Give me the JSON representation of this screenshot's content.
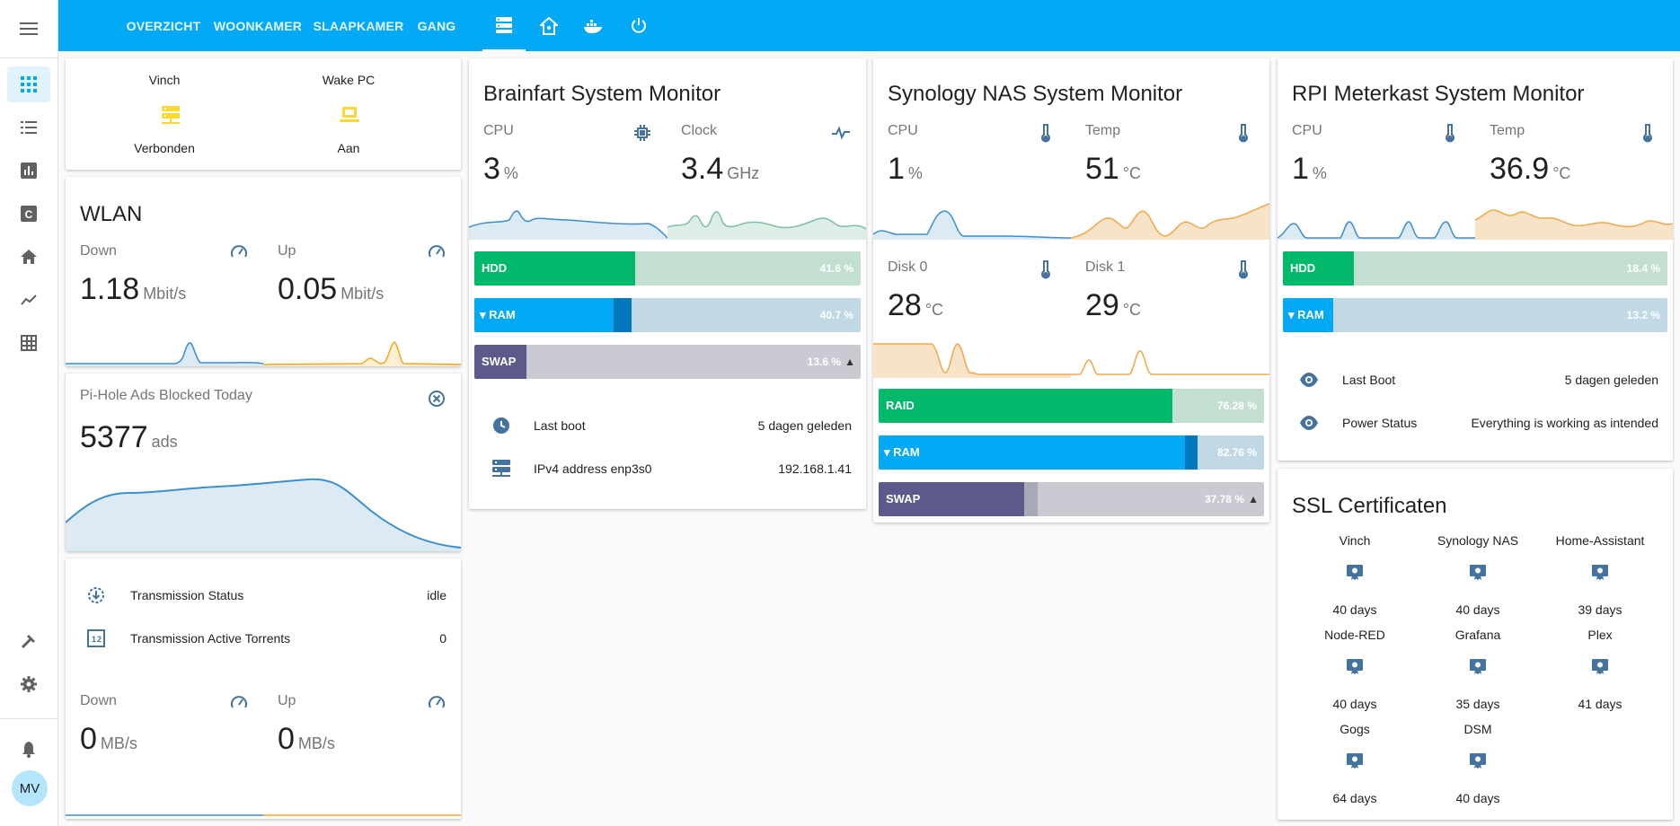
{
  "nav": {
    "tabs": [
      "OVERZICHT",
      "WOONKAMER",
      "SLAAPKAMER",
      "GANG"
    ],
    "user_initials": "MV"
  },
  "toggles": {
    "items": [
      {
        "name": "Vinch",
        "state": "Verbonden"
      },
      {
        "name": "Wake PC",
        "state": "Aan"
      }
    ]
  },
  "wlan": {
    "title": "WLAN",
    "down_label": "Down",
    "down_value": "1.18",
    "down_unit": "Mbit/s",
    "up_label": "Up",
    "up_value": "0.05",
    "up_unit": "Mbit/s"
  },
  "pihole": {
    "title": "Pi-Hole Ads Blocked Today",
    "value": "5377",
    "unit": "ads"
  },
  "transmission": {
    "status_label": "Transmission Status",
    "status_value": "idle",
    "torrents_label": "Transmission Active Torrents",
    "torrents_value": "0",
    "down_label": "Down",
    "down_value": "0",
    "down_unit": "MB/s",
    "up_label": "Up",
    "up_value": "0",
    "up_unit": "MB/s"
  },
  "brainfart": {
    "title": "Brainfart System Monitor",
    "cpu_label": "CPU",
    "cpu_value": "3",
    "cpu_unit": "%",
    "clock_label": "Clock",
    "clock_value": "3.4",
    "clock_unit": "GHz",
    "bars": [
      {
        "label": "HDD",
        "percent": "41.6 %",
        "fraction": 0.416
      },
      {
        "label": "RAM",
        "percent": "40.7 %",
        "fraction": 0.407
      },
      {
        "label": "SWAP",
        "percent": "13.6 %",
        "fraction": 0.136
      }
    ],
    "boot_label": "Last boot",
    "boot_value": "5 dagen geleden",
    "ip_label": "IPv4 address enp3s0",
    "ip_value": "192.168.1.41"
  },
  "synology": {
    "title": "Synology NAS System Monitor",
    "cpu_label": "CPU",
    "cpu_value": "1",
    "cpu_unit": "%",
    "temp_label": "Temp",
    "temp_value": "51",
    "temp_unit": "°C",
    "disk0_label": "Disk 0",
    "disk0_value": "28",
    "disk0_unit": "°C",
    "disk1_label": "Disk 1",
    "disk1_value": "29",
    "disk1_unit": "°C",
    "bars": [
      {
        "label": "RAID",
        "percent": "76.28 %",
        "fraction": 0.7628
      },
      {
        "label": "RAM",
        "percent": "82.76 %",
        "fraction": 0.8276
      },
      {
        "label": "SWAP",
        "percent": "37.78 %",
        "fraction": 0.3778
      }
    ]
  },
  "rpi": {
    "title": "RPI Meterkast System Monitor",
    "cpu_label": "CPU",
    "cpu_value": "1",
    "cpu_unit": "%",
    "temp_label": "Temp",
    "temp_value": "36.9",
    "temp_unit": "°C",
    "bars": [
      {
        "label": "HDD",
        "percent": "18.4 %",
        "fraction": 0.184
      },
      {
        "label": "RAM",
        "percent": "13.2 %",
        "fraction": 0.132
      }
    ],
    "boot_label": "Last Boot",
    "boot_value": "5 dagen geleden",
    "power_label": "Power Status",
    "power_value": "Everything is working as intended"
  },
  "ssl": {
    "title": "SSL Certificaten",
    "items": [
      {
        "name": "Vinch",
        "value": "40 days"
      },
      {
        "name": "Synology NAS",
        "value": "40 days"
      },
      {
        "name": "Home-Assistant",
        "value": "39 days"
      },
      {
        "name": "Node-RED",
        "value": "40 days"
      },
      {
        "name": "Grafana",
        "value": "35 days"
      },
      {
        "name": "Plex",
        "value": "41 days"
      },
      {
        "name": "Gogs",
        "value": "64 days"
      },
      {
        "name": "DSM",
        "value": "40 days"
      }
    ]
  },
  "colors": {
    "primary": "#03a9f4",
    "icon": "#44739e",
    "yellow": "#fdd835",
    "green": "#00b96b",
    "blue": "#03a9f4",
    "purple": "#5b5a8a"
  }
}
